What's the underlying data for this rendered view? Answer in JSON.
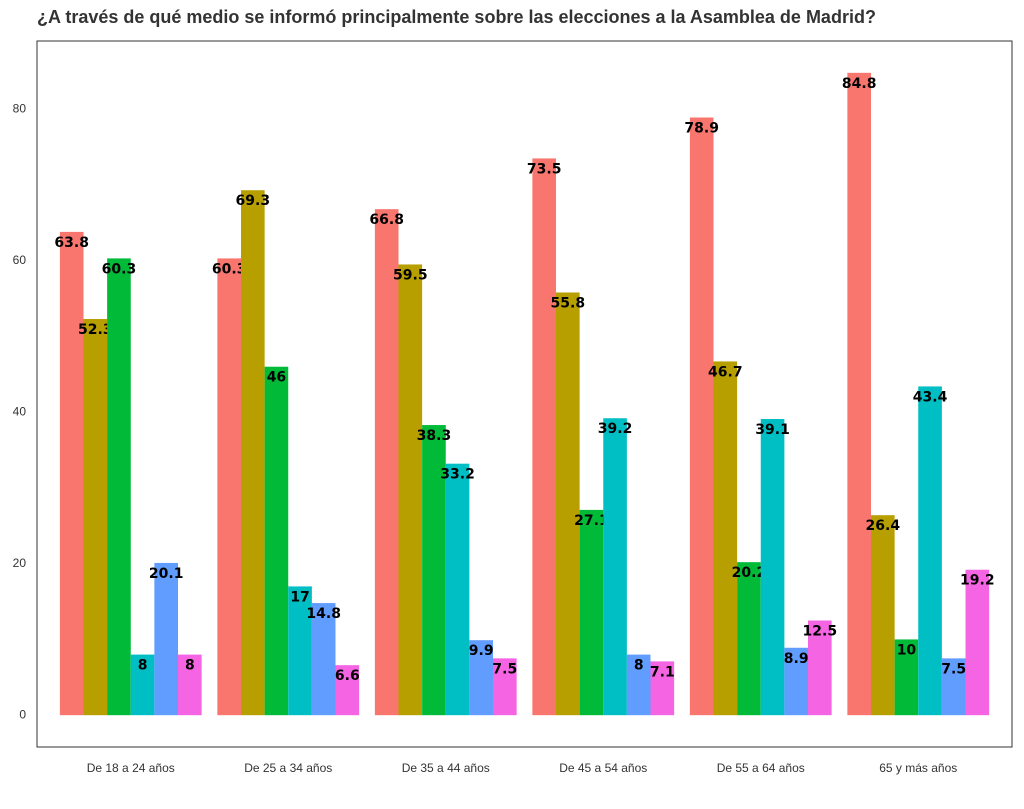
{
  "chart_data": {
    "type": "bar",
    "title": "¿A través de qué medio se informó principalmente sobre las elecciones a la Asamblea de Madrid?",
    "categories": [
      "De 18 a 24 años",
      "De 25 a 34 años",
      "De 35 a 44 años",
      "De 45 a 54 años",
      "De 55 a 64 años",
      "65 y más años"
    ],
    "series": [
      {
        "color": "#F8766D",
        "values": [
          63.8,
          60.3,
          66.8,
          73.5,
          78.9,
          84.8
        ]
      },
      {
        "color": "#B79F00",
        "values": [
          52.3,
          69.3,
          59.5,
          55.8,
          46.7,
          26.4
        ]
      },
      {
        "color": "#00BA38",
        "values": [
          60.3,
          46,
          38.3,
          27.1,
          20.2,
          10
        ]
      },
      {
        "color": "#00BFC4",
        "values": [
          8,
          17,
          33.2,
          39.2,
          39.1,
          43.4
        ]
      },
      {
        "color": "#619CFF",
        "values": [
          20.1,
          14.8,
          9.9,
          8,
          8.9,
          7.5
        ]
      },
      {
        "color": "#F564E3",
        "values": [
          8,
          6.6,
          7.5,
          7.1,
          12.5,
          19.2
        ]
      }
    ],
    "ylim": [
      -4.2,
      89
    ],
    "yticks": [
      0,
      20,
      40,
      60,
      80
    ]
  }
}
